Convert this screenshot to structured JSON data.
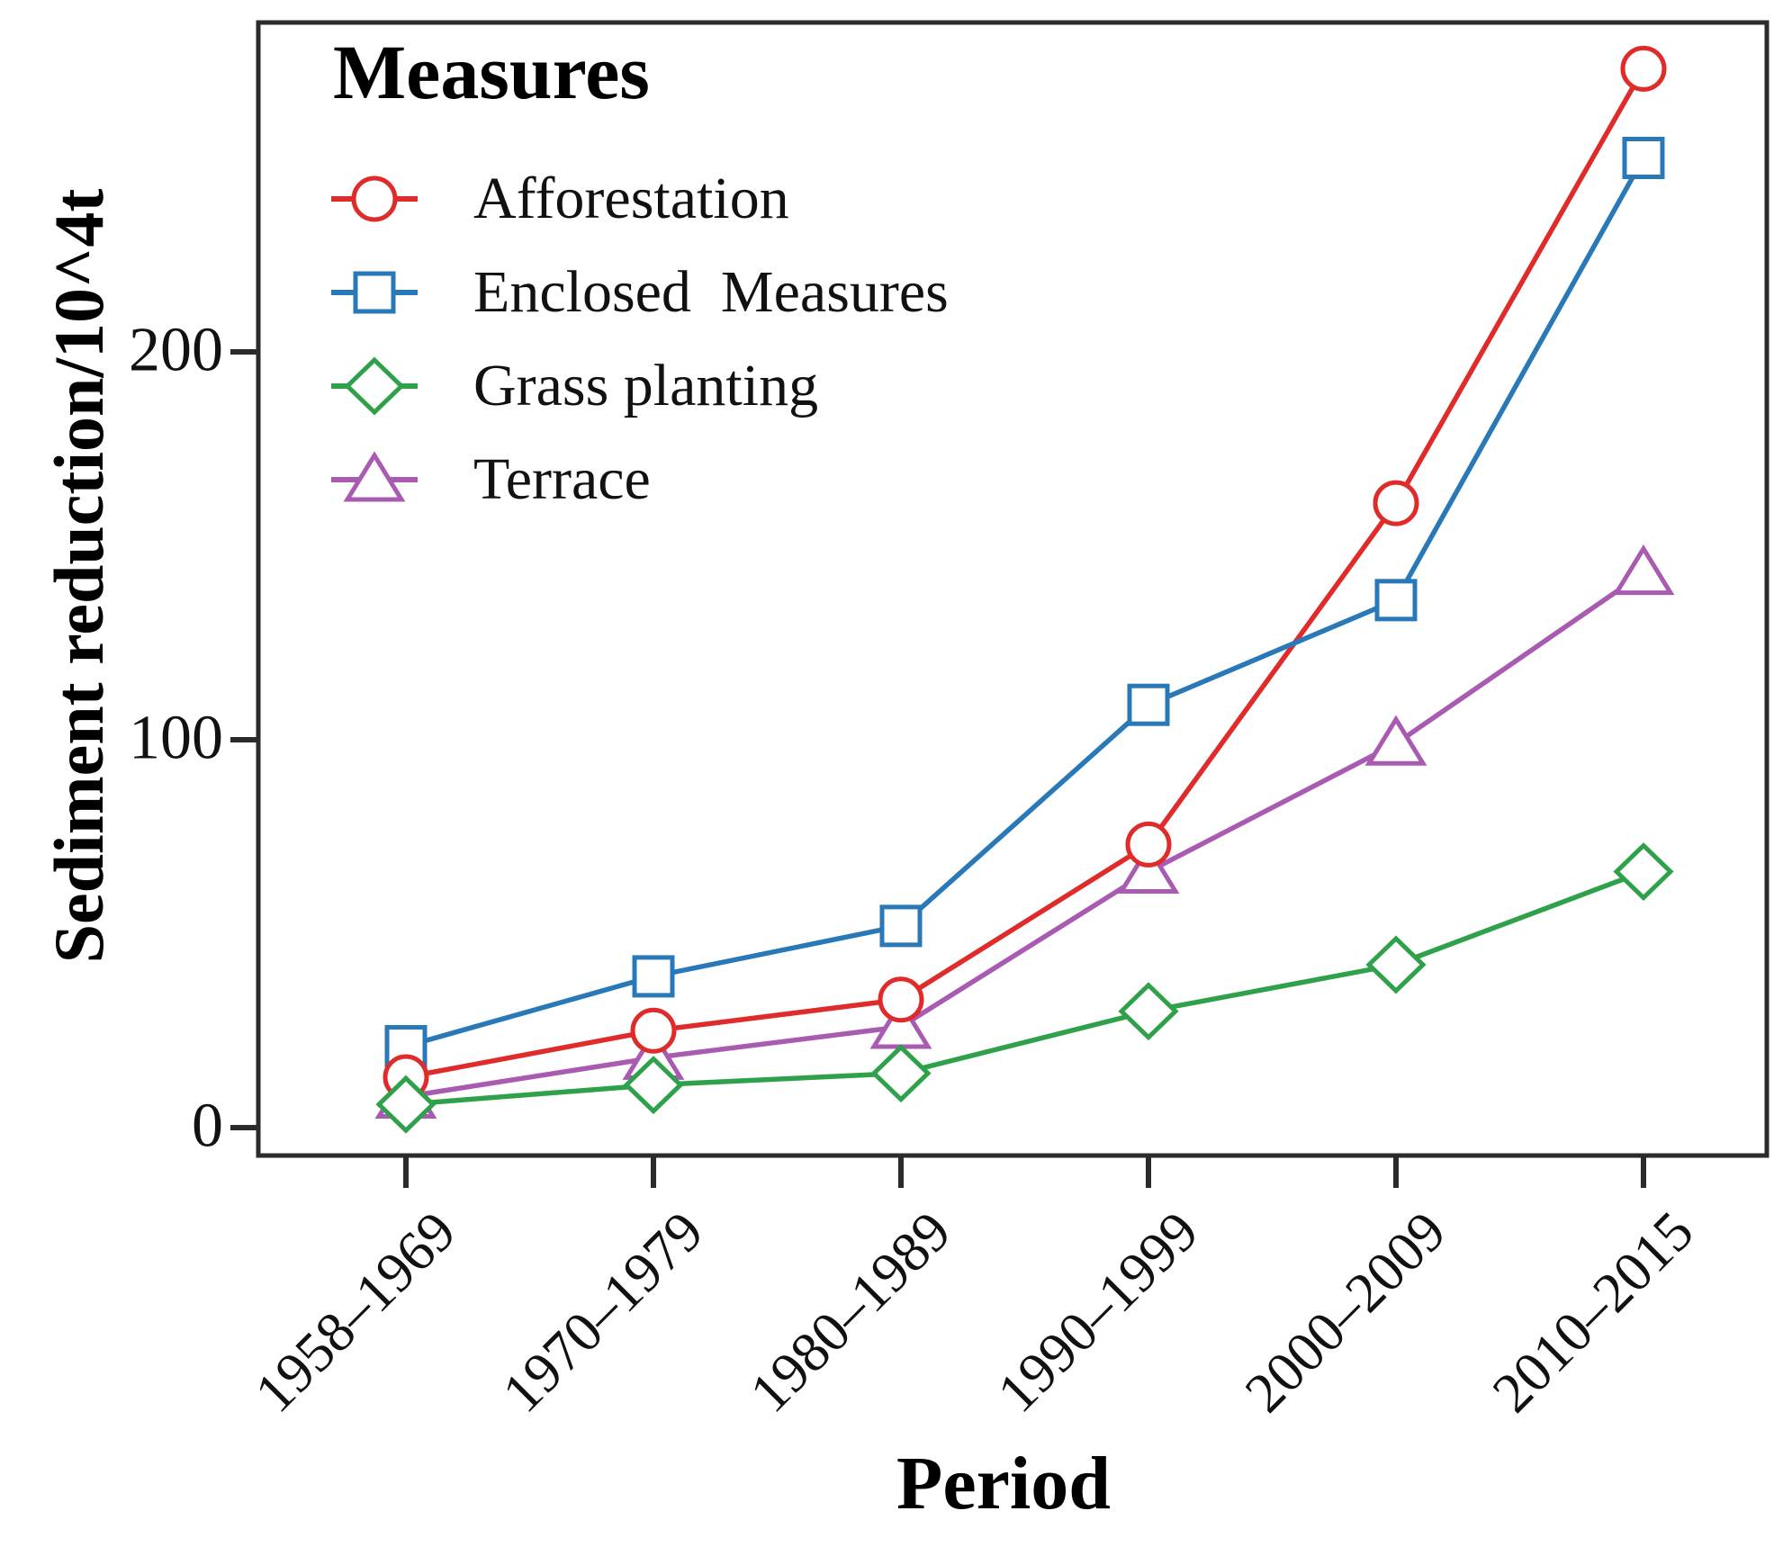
{
  "chart_data": {
    "type": "line",
    "title": "",
    "legend_title": "Measures",
    "xlabel": "Period",
    "ylabel": "Sediment reduction/10^4t",
    "categories": [
      "1958–1969",
      "1970–1979",
      "1980–1989",
      "1990–1999",
      "2000–2009",
      "2010–2015"
    ],
    "yticks": [
      0,
      100,
      200
    ],
    "ylim": [
      0,
      285
    ],
    "grid": false,
    "legend_position": "inside-top-left",
    "axis_color": "#2b2b2b",
    "series": [
      {
        "name": "Afforestation",
        "color": "#e02b2b",
        "marker": "circle",
        "values": [
          13,
          25,
          33,
          73,
          161,
          273
        ]
      },
      {
        "name": "Enclosed  Measures",
        "color": "#2979b8",
        "marker": "square",
        "values": [
          21,
          39,
          52,
          109,
          136,
          250
        ]
      },
      {
        "name": "Grass planting",
        "color": "#2fa14b",
        "marker": "diamond",
        "values": [
          6,
          11,
          14,
          30,
          42,
          66
        ]
      },
      {
        "name": "Terrace",
        "color": "#a95bb1",
        "marker": "triangle",
        "values": [
          8,
          18,
          26,
          66,
          99,
          143
        ]
      }
    ]
  }
}
